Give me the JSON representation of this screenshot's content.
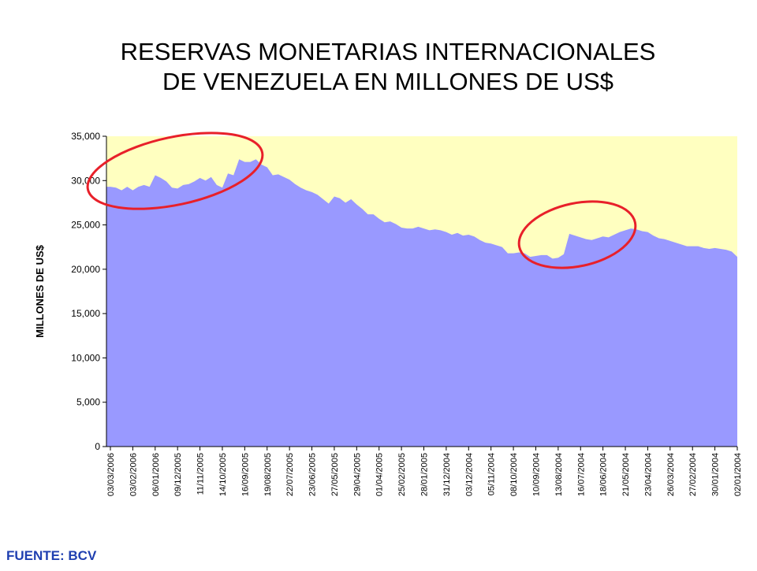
{
  "chart_data": {
    "type": "area",
    "title": [
      "RESERVAS MONETARIAS INTERNACIONALES",
      "DE VENEZUELA EN MILLONES DE US$"
    ],
    "ylabel": "MILLONES DE US$",
    "source": "FUENTE: BCV",
    "color": "#9999ff",
    "background": "#ffffc0",
    "categories": [
      "03/03/2006",
      null,
      null,
      null,
      "03/02/2006",
      null,
      null,
      null,
      "06/01/2006",
      null,
      null,
      null,
      "09/12/2005",
      null,
      null,
      null,
      "11/11/2005",
      null,
      null,
      null,
      "14/10/2005",
      null,
      null,
      null,
      "16/09/2005",
      null,
      null,
      null,
      "19/08/2005",
      null,
      null,
      null,
      "22/07/2005",
      null,
      null,
      null,
      "23/06/2005",
      null,
      null,
      null,
      "27/05/2005",
      null,
      null,
      null,
      "29/04/2005",
      null,
      null,
      null,
      "01/04/2005",
      null,
      null,
      null,
      "25/02/2005",
      null,
      null,
      null,
      "28/01/2005",
      null,
      null,
      null,
      "31/12/2004",
      null,
      null,
      null,
      "03/12/2004",
      null,
      null,
      null,
      "05/11/2004",
      null,
      null,
      null,
      "08/10/2004",
      null,
      null,
      null,
      "10/09/2004",
      null,
      null,
      null,
      "13/08/2004",
      null,
      null,
      null,
      "16/07/2004",
      null,
      null,
      null,
      "18/06/2004",
      null,
      null,
      null,
      "21/05/2004",
      null,
      null,
      null,
      "23/04/2004",
      null,
      null,
      null,
      "26/03/2004",
      null,
      null,
      null,
      "27/02/2004",
      null,
      null,
      null,
      "30/01/2004",
      null,
      null,
      null,
      "02/01/2004"
    ],
    "values": [
      29300,
      29200,
      28900,
      29300,
      28900,
      29300,
      29500,
      29300,
      30600,
      30300,
      29900,
      29200,
      29100,
      29500,
      29600,
      29900,
      30300,
      30000,
      30400,
      29500,
      29200,
      30800,
      30600,
      32400,
      32100,
      32100,
      32400,
      31800,
      31500,
      30600,
      30700,
      30400,
      30100,
      29600,
      29200,
      28900,
      28700,
      28400,
      27900,
      27400,
      28200,
      28000,
      27500,
      27900,
      27300,
      26800,
      26200,
      26200,
      25700,
      25300,
      25400,
      25100,
      24700,
      24600,
      24600,
      24800,
      24600,
      24400,
      24500,
      24400,
      24200,
      23900,
      24100,
      23800,
      23900,
      23700,
      23300,
      23000,
      22900,
      22700,
      22500,
      21800,
      21800,
      21900,
      21800,
      21400,
      21500,
      21600,
      21600,
      21200,
      21300,
      21700,
      24000,
      23800,
      23600,
      23400,
      23300,
      23500,
      23700,
      23600,
      23900,
      24200,
      24400,
      24600,
      24500,
      24300,
      24200,
      23800,
      23500,
      23400,
      23200,
      23000,
      22800,
      22600,
      22600,
      22600,
      22400,
      22300,
      22400,
      22300,
      22200,
      22000,
      21400
    ],
    "ylim": [
      0,
      35000
    ],
    "yticks": [
      0,
      {
        "value": 5000,
        "label": "5,000"
      },
      {
        "value": 10000,
        "label": "10,000"
      },
      {
        "value": 15000,
        "label": "15,000"
      },
      {
        "value": 20000,
        "label": "20,000"
      },
      {
        "value": 25000,
        "label": "25,000"
      },
      {
        "value": 30000,
        "label": "30,000"
      },
      {
        "value": 35000,
        "label": "35,000"
      }
    ]
  }
}
